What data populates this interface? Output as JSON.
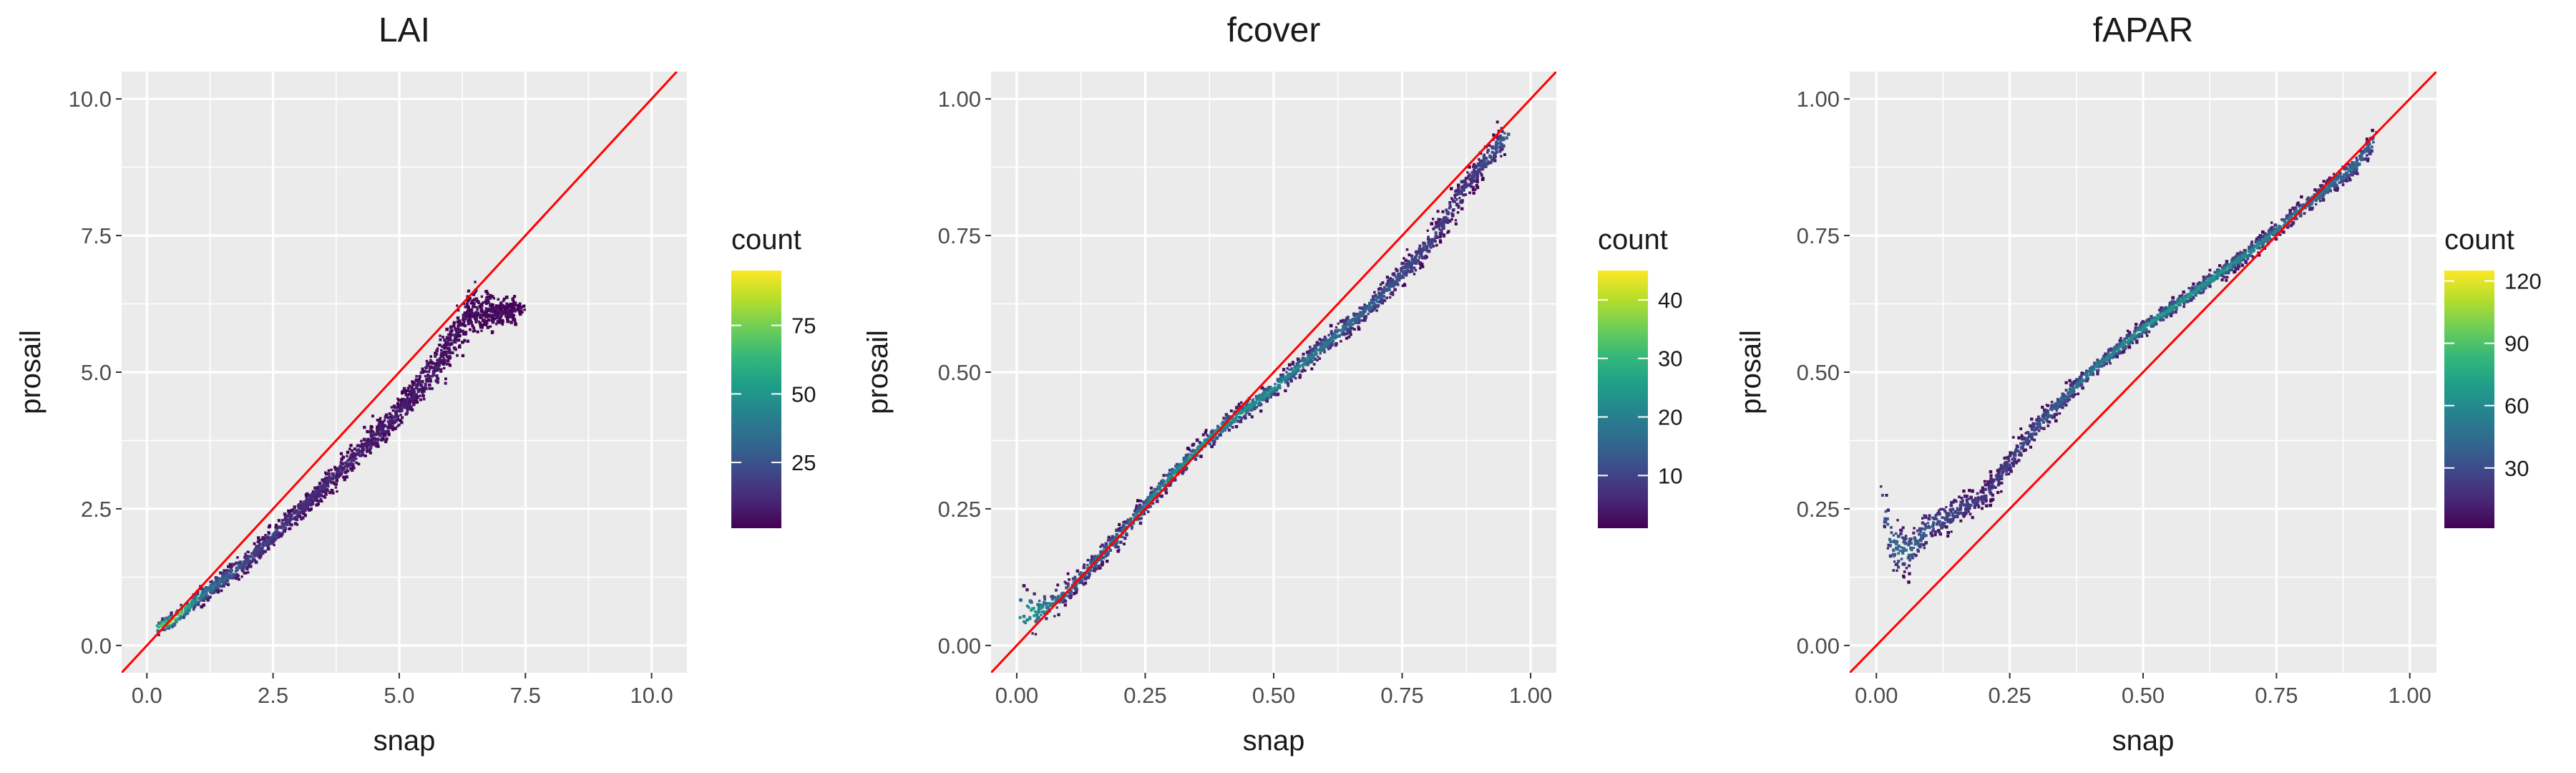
{
  "figure": {
    "background": "#ffffff",
    "panel_background": "#ebebeb",
    "gridline_color": "#ffffff",
    "reference_line_color": "#ff0000",
    "viridis": [
      "#440154",
      "#482878",
      "#3e4989",
      "#31688e",
      "#26828e",
      "#1f9e89",
      "#35b779",
      "#6ece58",
      "#b5de2b",
      "#fde725"
    ]
  },
  "chart_data": [
    {
      "type": "heatmap",
      "title": "LAI",
      "xlabel": "snap",
      "ylabel": "prosail",
      "xlim": [
        -0.5,
        10.7
      ],
      "ylim": [
        -0.5,
        10.5
      ],
      "xticks": [
        0.0,
        2.5,
        5.0,
        7.5,
        10.0
      ],
      "xtick_labels": [
        "0.0",
        "2.5",
        "5.0",
        "7.5",
        "10.0"
      ],
      "yticks": [
        0.0,
        2.5,
        5.0,
        7.5,
        10.0
      ],
      "ytick_labels": [
        "0.0",
        "2.5",
        "5.0",
        "7.5",
        "10.0"
      ],
      "grid": true,
      "reference_line": "y = x",
      "legend": {
        "title": "count",
        "position": "right",
        "min": 1,
        "max": 95,
        "ticks": [
          25,
          50,
          75
        ],
        "tick_labels": [
          "25",
          "50",
          "75"
        ]
      },
      "density_ridge": [
        {
          "x": 0.2,
          "y": 0.33,
          "w": 0.12,
          "c": 0.6
        },
        {
          "x": 0.5,
          "y": 0.45,
          "w": 0.14,
          "c": 0.9
        },
        {
          "x": 1.0,
          "y": 0.85,
          "w": 0.16,
          "c": 0.45
        },
        {
          "x": 2.0,
          "y": 1.55,
          "w": 0.18,
          "c": 0.22
        },
        {
          "x": 3.0,
          "y": 2.45,
          "w": 0.2,
          "c": 0.14
        },
        {
          "x": 4.0,
          "y": 3.35,
          "w": 0.22,
          "c": 0.1
        },
        {
          "x": 5.0,
          "y": 4.25,
          "w": 0.28,
          "c": 0.08
        },
        {
          "x": 5.8,
          "y": 5.2,
          "w": 0.36,
          "c": 0.06
        },
        {
          "x": 6.4,
          "y": 6.1,
          "w": 0.4,
          "c": 0.03
        },
        {
          "x": 7.0,
          "y": 6.1,
          "w": 0.25,
          "c": 0.02
        },
        {
          "x": 7.4,
          "y": 6.15,
          "w": 0.15,
          "c": 0.01
        }
      ]
    },
    {
      "type": "heatmap",
      "title": "fcover",
      "xlabel": "snap",
      "ylabel": "prosail",
      "xlim": [
        -0.05,
        1.05
      ],
      "ylim": [
        -0.05,
        1.05
      ],
      "xticks": [
        0.0,
        0.25,
        0.5,
        0.75,
        1.0
      ],
      "xtick_labels": [
        "0.00",
        "0.25",
        "0.50",
        "0.75",
        "1.00"
      ],
      "yticks": [
        0.0,
        0.25,
        0.5,
        0.75,
        1.0
      ],
      "ytick_labels": [
        "0.00",
        "0.25",
        "0.50",
        "0.75",
        "1.00"
      ],
      "grid": true,
      "reference_line": "y = x",
      "legend": {
        "title": "count",
        "position": "right",
        "min": 1,
        "max": 45,
        "ticks": [
          10,
          20,
          30,
          40
        ],
        "tick_labels": [
          "10",
          "20",
          "30",
          "40"
        ]
      },
      "density_ridge": [
        {
          "x": 0.01,
          "y": 0.06,
          "w": 0.05,
          "c": 0.5
        },
        {
          "x": 0.03,
          "y": 0.06,
          "w": 0.04,
          "c": 0.55
        },
        {
          "x": 0.06,
          "y": 0.07,
          "w": 0.03,
          "c": 0.4
        },
        {
          "x": 0.1,
          "y": 0.1,
          "w": 0.02,
          "c": 0.35
        },
        {
          "x": 0.2,
          "y": 0.2,
          "w": 0.018,
          "c": 0.4
        },
        {
          "x": 0.3,
          "y": 0.31,
          "w": 0.016,
          "c": 0.5
        },
        {
          "x": 0.4,
          "y": 0.4,
          "w": 0.016,
          "c": 0.55
        },
        {
          "x": 0.5,
          "y": 0.47,
          "w": 0.016,
          "c": 0.5
        },
        {
          "x": 0.6,
          "y": 0.55,
          "w": 0.018,
          "c": 0.4
        },
        {
          "x": 0.7,
          "y": 0.63,
          "w": 0.02,
          "c": 0.3
        },
        {
          "x": 0.8,
          "y": 0.73,
          "w": 0.025,
          "c": 0.2
        },
        {
          "x": 0.88,
          "y": 0.85,
          "w": 0.03,
          "c": 0.15
        },
        {
          "x": 0.95,
          "y": 0.93,
          "w": 0.025,
          "c": 0.3
        }
      ]
    },
    {
      "type": "heatmap",
      "title": "fAPAR",
      "xlabel": "snap",
      "ylabel": "prosail",
      "xlim": [
        -0.05,
        1.05
      ],
      "ylim": [
        -0.05,
        1.05
      ],
      "xticks": [
        0.0,
        0.25,
        0.5,
        0.75,
        1.0
      ],
      "xtick_labels": [
        "0.00",
        "0.25",
        "0.50",
        "0.75",
        "1.00"
      ],
      "yticks": [
        0.0,
        0.25,
        0.5,
        0.75,
        1.0
      ],
      "ytick_labels": [
        "0.00",
        "0.25",
        "0.50",
        "0.75",
        "1.00"
      ],
      "grid": true,
      "reference_line": "y = x",
      "legend": {
        "title": "count",
        "position": "right",
        "min": 1,
        "max": 125,
        "ticks": [
          30,
          60,
          90,
          120
        ],
        "tick_labels": [
          "30",
          "60",
          "90",
          "120"
        ]
      },
      "density_ridge": [
        {
          "x": 0.01,
          "y": 0.27,
          "w": 0.045,
          "c": 0.25
        },
        {
          "x": 0.03,
          "y": 0.18,
          "w": 0.05,
          "c": 0.35
        },
        {
          "x": 0.06,
          "y": 0.17,
          "w": 0.04,
          "c": 0.35
        },
        {
          "x": 0.1,
          "y": 0.22,
          "w": 0.03,
          "c": 0.25
        },
        {
          "x": 0.2,
          "y": 0.27,
          "w": 0.025,
          "c": 0.15
        },
        {
          "x": 0.3,
          "y": 0.4,
          "w": 0.02,
          "c": 0.25
        },
        {
          "x": 0.4,
          "y": 0.5,
          "w": 0.015,
          "c": 0.4
        },
        {
          "x": 0.5,
          "y": 0.58,
          "w": 0.013,
          "c": 0.55
        },
        {
          "x": 0.6,
          "y": 0.65,
          "w": 0.013,
          "c": 0.55
        },
        {
          "x": 0.7,
          "y": 0.72,
          "w": 0.013,
          "c": 0.5
        },
        {
          "x": 0.8,
          "y": 0.8,
          "w": 0.015,
          "c": 0.4
        },
        {
          "x": 0.9,
          "y": 0.88,
          "w": 0.02,
          "c": 0.35
        },
        {
          "x": 0.93,
          "y": 0.92,
          "w": 0.02,
          "c": 0.3
        }
      ]
    }
  ]
}
